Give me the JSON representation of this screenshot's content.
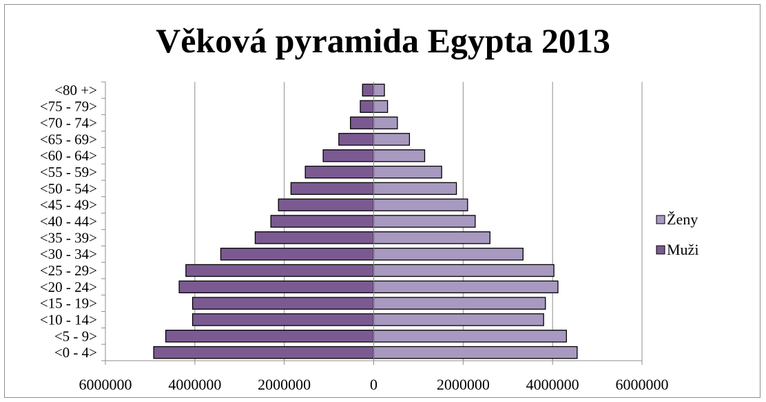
{
  "chart_data": {
    "type": "bar",
    "orientation": "horizontal",
    "title": "Věková pyramida Egypta 2013",
    "categories": [
      "<0 - 4>",
      "<5 - 9>",
      "<10 - 14>",
      "<15 - 19>",
      "<20 - 24>",
      "<25 - 29>",
      "<30 - 34>",
      "<35 - 39>",
      "<40 - 44>",
      "<45 - 49>",
      "<50 - 54>",
      "<55 - 59>",
      "<60 - 64>",
      "<65 - 69>",
      "<70 - 74>",
      "<75 - 79>",
      "<80 +>"
    ],
    "series": [
      {
        "name": "Muži",
        "color": "#7b5a92",
        "values": [
          -4920000,
          -4650000,
          -4050000,
          -4050000,
          -4350000,
          -4200000,
          -3420000,
          -2650000,
          -2300000,
          -2130000,
          -1850000,
          -1530000,
          -1130000,
          -780000,
          -520000,
          -300000,
          -250000
        ]
      },
      {
        "name": "Ženy",
        "color": "#a799bf",
        "values": [
          4550000,
          4310000,
          3800000,
          3840000,
          4120000,
          4030000,
          3340000,
          2600000,
          2270000,
          2100000,
          1850000,
          1520000,
          1140000,
          800000,
          530000,
          310000,
          240000
        ]
      }
    ],
    "xlim": [
      -6000000,
      6000000
    ],
    "xticks": [
      -6000000,
      -4000000,
      -2000000,
      0,
      2000000,
      4000000,
      6000000
    ],
    "xtick_labels": [
      "6000000",
      "4000000",
      "2000000",
      "0",
      "2000000",
      "4000000",
      "6000000"
    ],
    "grid": true,
    "legend_position": "right"
  }
}
